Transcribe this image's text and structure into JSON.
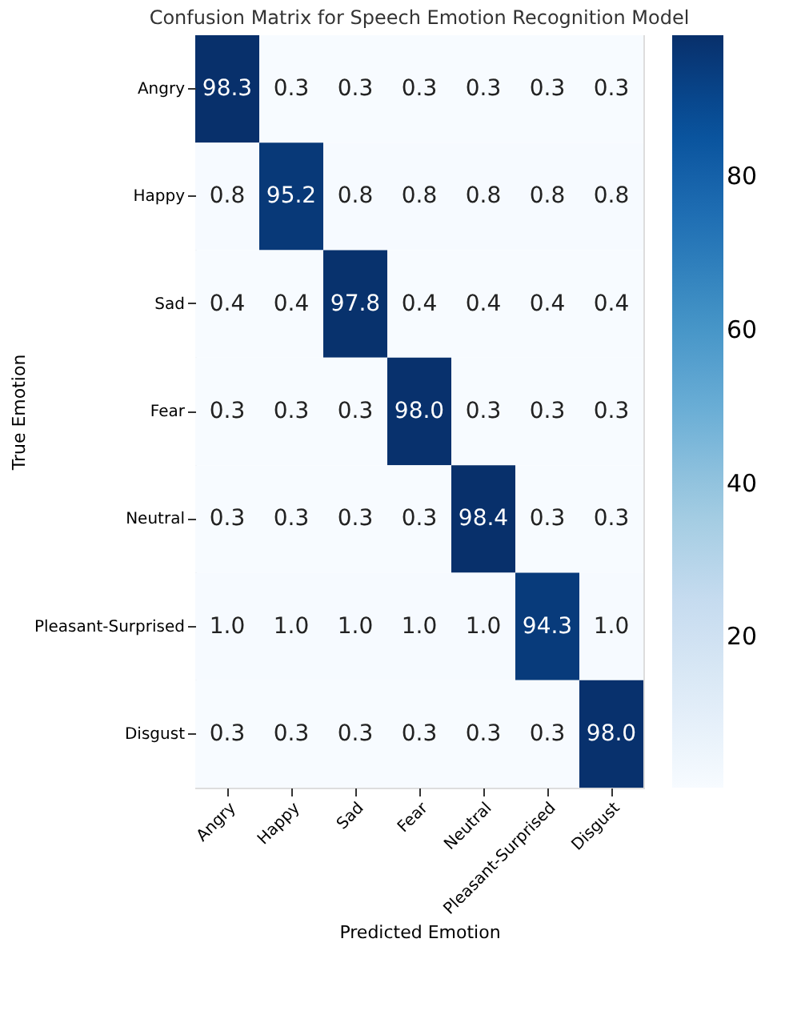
{
  "chart_data": {
    "type": "heatmap",
    "title": "Confusion Matrix for Speech Emotion Recognition Model",
    "xlabel": "Predicted Emotion",
    "ylabel": "True Emotion",
    "categories": [
      "Angry",
      "Happy",
      "Sad",
      "Fear",
      "Neutral",
      "Pleasant-Surprised",
      "Disgust"
    ],
    "y_categories": [
      "Angry",
      "Happy",
      "Sad",
      "Fear",
      "Neutral",
      "Pleasant-Surprised",
      "Disgust"
    ],
    "cells": [
      [
        98.3,
        0.3,
        0.3,
        0.3,
        0.3,
        0.3,
        0.3
      ],
      [
        0.8,
        95.2,
        0.8,
        0.8,
        0.8,
        0.8,
        0.8
      ],
      [
        0.4,
        0.4,
        97.8,
        0.4,
        0.4,
        0.4,
        0.4
      ],
      [
        0.3,
        0.3,
        0.3,
        98.0,
        0.3,
        0.3,
        0.3
      ],
      [
        0.3,
        0.3,
        0.3,
        0.3,
        98.4,
        0.3,
        0.3
      ],
      [
        1.0,
        1.0,
        1.0,
        1.0,
        1.0,
        94.3,
        1.0
      ],
      [
        0.3,
        0.3,
        0.3,
        0.3,
        0.3,
        0.3,
        98.0
      ]
    ],
    "cell_labels": [
      [
        "98.3",
        "0.3",
        "0.3",
        "0.3",
        "0.3",
        "0.3",
        "0.3"
      ],
      [
        "0.8",
        "95.2",
        "0.8",
        "0.8",
        "0.8",
        "0.8",
        "0.8"
      ],
      [
        "0.4",
        "0.4",
        "97.8",
        "0.4",
        "0.4",
        "0.4",
        "0.4"
      ],
      [
        "0.3",
        "0.3",
        "0.3",
        "98.0",
        "0.3",
        "0.3",
        "0.3"
      ],
      [
        "0.3",
        "0.3",
        "0.3",
        "0.3",
        "98.4",
        "0.3",
        "0.3"
      ],
      [
        "1.0",
        "1.0",
        "1.0",
        "1.0",
        "1.0",
        "94.3",
        "1.0"
      ],
      [
        "0.3",
        "0.3",
        "0.3",
        "0.3",
        "0.3",
        "0.3",
        "98.0"
      ]
    ],
    "clim": [
      0.3,
      98.4
    ],
    "cticks": [
      20,
      40,
      60,
      80
    ],
    "data_labels": true
  }
}
